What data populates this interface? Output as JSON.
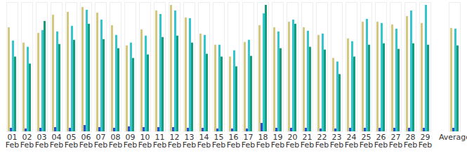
{
  "chart_data": {
    "type": "bar",
    "categories": [
      "01\nFeb",
      "02\nFeb",
      "03\nFeb",
      "04\nFeb",
      "05\nFeb",
      "06\nFeb",
      "07\nFeb",
      "08\nFeb",
      "09\nFeb",
      "10\nFeb",
      "11\nFeb",
      "12\nFeb",
      "13\nFeb",
      "14\nFeb",
      "15\nFeb",
      "16\nFeb",
      "17\nFeb",
      "18\nFeb",
      "19\nFeb",
      "20\nFeb",
      "21\nFeb",
      "22\nFeb",
      "23\nFeb",
      "24\nFeb",
      "25\nFeb",
      "26\nFeb",
      "27\nFeb",
      "28\nFeb",
      "29\nFeb",
      null,
      "Average"
    ],
    "series": [
      {
        "color": "#d4c87e",
        "values": [
          149,
          127,
          141,
          167,
          171,
          178,
          170,
          152,
          123,
          146,
          173,
          181,
          163,
          140,
          124,
          107,
          128,
          152,
          149,
          157,
          149,
          138,
          105,
          133,
          157,
          157,
          153,
          165,
          155,
          null,
          148
        ]
      },
      {
        "color": "#2a4fcc",
        "values": [
          5,
          4,
          5,
          6,
          5,
          9,
          6,
          5,
          7,
          6,
          6,
          6,
          5,
          5,
          4,
          4,
          4,
          12,
          5,
          5,
          5,
          4,
          4,
          5,
          5,
          5,
          5,
          5,
          5,
          null,
          5
        ]
      },
      {
        "color": "#33c6cc",
        "values": [
          130,
          121,
          145,
          143,
          151,
          174,
          160,
          138,
          127,
          137,
          168,
          173,
          162,
          138,
          124,
          116,
          131,
          169,
          143,
          160,
          144,
          140,
          100,
          129,
          161,
          155,
          147,
          173,
          181,
          null,
          147
        ]
      },
      {
        "color": "#169c7c",
        "values": [
          107,
          97,
          158,
          125,
          131,
          154,
          132,
          119,
          105,
          110,
          135,
          137,
          127,
          111,
          107,
          93,
          108,
          181,
          119,
          154,
          121,
          117,
          82,
          107,
          124,
          126,
          118,
          126,
          124,
          null,
          123
        ]
      }
    ],
    "ylim": [
      0,
      185
    ],
    "tick_labels": "x",
    "grid": false
  }
}
